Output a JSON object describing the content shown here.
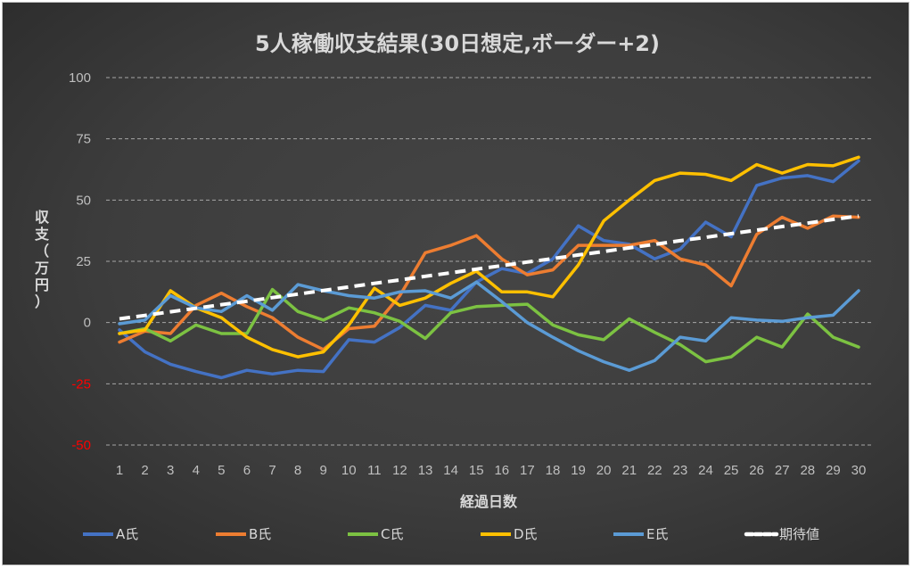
{
  "chart_data": {
    "type": "line",
    "title": "5人稼働収支結果(30日想定,ボーダー+2)",
    "xlabel": "経過日数",
    "ylabel": "収支（万円）",
    "ylim": [
      -50,
      100
    ],
    "yticks": [
      100,
      75,
      50,
      25,
      0,
      -25,
      -50
    ],
    "negative_tick_color": "#ff0000",
    "grid": true,
    "legend": "bottom",
    "x": [
      1,
      2,
      3,
      4,
      5,
      6,
      7,
      8,
      9,
      10,
      11,
      12,
      13,
      14,
      15,
      16,
      17,
      18,
      19,
      20,
      21,
      22,
      23,
      24,
      25,
      26,
      27,
      28,
      29,
      30
    ],
    "series": [
      {
        "name": "A氏",
        "color": "#4472C4",
        "dash": false,
        "values": [
          -3,
          -12,
          -17,
          -20,
          -22.5,
          -19.5,
          -21,
          -19.5,
          -20,
          -7,
          -8,
          -2,
          7,
          5,
          16.5,
          22,
          20,
          26,
          39.5,
          33.5,
          32,
          26,
          30,
          41,
          35,
          56,
          59,
          60,
          57.5,
          66
        ]
      },
      {
        "name": "B氏",
        "color": "#ED7D31",
        "dash": false,
        "values": [
          -8,
          -3.5,
          -4.5,
          7,
          12,
          6.5,
          2,
          -6,
          -11,
          -2.5,
          -1.5,
          11,
          28.5,
          31.5,
          35.5,
          26,
          19.5,
          21.5,
          31.5,
          31.5,
          31.5,
          33.5,
          26,
          23.5,
          15,
          36,
          43,
          38.5,
          43.5,
          43
        ]
      },
      {
        "name": "C氏",
        "color": "#7CC242",
        "dash": false,
        "values": [
          -4.5,
          -2.5,
          -7.5,
          -1,
          -4.5,
          -4.5,
          13.5,
          4.5,
          1,
          6,
          4,
          0.5,
          -6.5,
          4,
          6.5,
          7,
          7.5,
          -1,
          -5,
          -7,
          1.5,
          -4,
          -9,
          -16,
          -14,
          -6,
          -10,
          3.5,
          -6,
          -10
        ]
      },
      {
        "name": "D氏",
        "color": "#FFC000",
        "dash": false,
        "values": [
          -4.5,
          -3,
          13,
          6,
          2,
          -6,
          -11,
          -14,
          -12,
          -1,
          14,
          7,
          10,
          16,
          21,
          12.5,
          12.5,
          10.5,
          23.5,
          41.5,
          50,
          58,
          61,
          60.5,
          58,
          64.5,
          61,
          64.5,
          64,
          67.5
        ]
      },
      {
        "name": "E氏",
        "color": "#5B9BD5",
        "dash": false,
        "values": [
          -0.5,
          1,
          11,
          6,
          4.5,
          11,
          5,
          15.5,
          13,
          11,
          10,
          12.5,
          13,
          10,
          16.5,
          8.5,
          0,
          -6,
          -11.5,
          -16,
          -19.5,
          -15.5,
          -6,
          -7.5,
          2,
          1,
          0.5,
          2,
          3,
          13
        ]
      },
      {
        "name": "期待値",
        "color": "#FFFFFF",
        "dash": true,
        "values": [
          1.5,
          2.9,
          4.4,
          5.8,
          7.3,
          8.7,
          10.2,
          11.6,
          13.1,
          14.5,
          16,
          17.4,
          18.9,
          20.3,
          21.8,
          23.2,
          24.7,
          26.1,
          27.6,
          29,
          30.5,
          31.9,
          33.4,
          34.8,
          36.3,
          37.7,
          39.2,
          40.6,
          42.1,
          43.5
        ]
      }
    ]
  }
}
